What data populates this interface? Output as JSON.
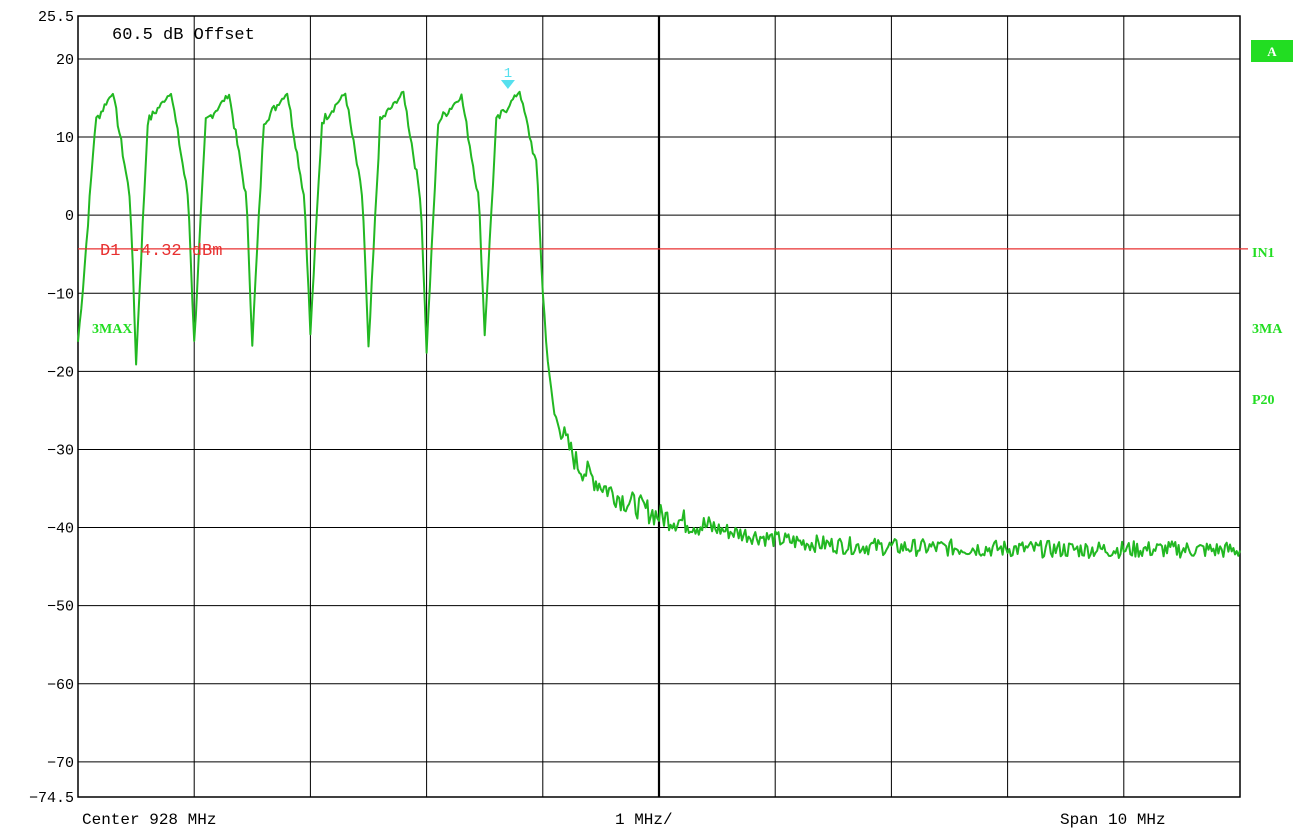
{
  "chart_data": {
    "type": "line",
    "x_axis": {
      "center_label": "Center 928 MHz",
      "per_div_label": "1 MHz/",
      "span_label": "Span 10 MHz",
      "center_mhz": 928,
      "span_mhz": 10,
      "xlim": [
        923,
        933
      ]
    },
    "y_axis": {
      "ylim": [
        -74.5,
        25.5
      ],
      "tick_labels": [
        "25.5",
        "20",
        "10",
        "0",
        "-10",
        "-20",
        "-30",
        "-40",
        "-50",
        "-60",
        "-70",
        "-74.5"
      ],
      "tick_values": [
        25.5,
        20,
        10,
        0,
        -10,
        -20,
        -30,
        -40,
        -50,
        -60,
        -70,
        -74.5
      ]
    },
    "grid": true,
    "offset_label": "60.5 dB Offset",
    "display_line": {
      "label": "D1  -4.32  dBm",
      "value": -4.32,
      "color": "#e83030"
    },
    "marker": {
      "label": "1",
      "x": 926.7,
      "y": 15.9,
      "color": "#55e0ee"
    },
    "side_labels": {
      "trace_left": "3MAX",
      "badge": "A",
      "right": [
        "IN1",
        "3MA",
        "P20"
      ]
    },
    "series": [
      {
        "color": "#22b822",
        "hop_channels_mhz": [
          923.18,
          923.68,
          924.18,
          924.68,
          925.18,
          925.68,
          926.18,
          926.68
        ],
        "channel_peaks_dbm": [
          15.8,
          15.8,
          15.5,
          15.7,
          15.6,
          15.7,
          15.3,
          15.9
        ],
        "trough_levels_dbm": [
          -16.2,
          -18.8,
          -16.4,
          -16.3,
          -15.2,
          -17.3,
          -17.3,
          -15.1
        ],
        "x": [
          923.0,
          923.05,
          923.15,
          923.3,
          923.45,
          923.5,
          923.6,
          923.8,
          923.95,
          924.0,
          924.1,
          924.3,
          924.45,
          924.5,
          924.6,
          924.8,
          924.95,
          925.0,
          925.1,
          925.3,
          925.45,
          925.5,
          925.6,
          925.8,
          925.95,
          926.0,
          926.1,
          926.3,
          926.45,
          926.5,
          926.6,
          926.8,
          926.95,
          927.0,
          927.05,
          927.1,
          927.2,
          927.3,
          927.5,
          927.7,
          928.0,
          928.3,
          928.6,
          929.0,
          929.3,
          929.6,
          930.0,
          930.5,
          931.0,
          931.5,
          932.0,
          932.5,
          933.0
        ],
        "y": [
          -16.2,
          -8.0,
          12.0,
          15.8,
          2.0,
          -18.8,
          12.0,
          15.8,
          2.0,
          -16.4,
          12.0,
          15.5,
          2.0,
          -16.3,
          12.0,
          15.7,
          2.0,
          -15.2,
          12.0,
          15.6,
          2.0,
          -17.3,
          12.0,
          15.7,
          2.0,
          -17.3,
          12.0,
          15.3,
          2.0,
          -15.1,
          12.0,
          15.9,
          6.0,
          -10.0,
          -20.0,
          -25.5,
          -29.0,
          -32.0,
          -34.5,
          -36.5,
          -38.5,
          -39.5,
          -40.5,
          -41.5,
          -42.0,
          -42.3,
          -42.5,
          -42.6,
          -42.7,
          -42.8,
          -42.8,
          -42.8,
          -42.9
        ]
      }
    ]
  }
}
